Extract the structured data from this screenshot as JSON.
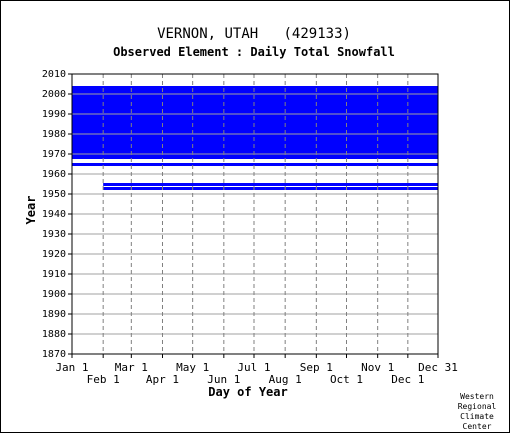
{
  "chart_data": {
    "type": "heatmap",
    "title": "VERNON, UTAH   (429133)",
    "subtitle": "Observed Element : Daily Total Snowfall",
    "xlabel": "Day of Year",
    "ylabel": "Year",
    "xlim": [
      1,
      365
    ],
    "ylim": [
      1870,
      2010
    ],
    "grid": true,
    "series_color": "#0000ff",
    "y_ticks": [
      2010,
      2000,
      1990,
      1980,
      1970,
      1960,
      1950,
      1940,
      1930,
      1920,
      1910,
      1900,
      1890,
      1880,
      1870
    ],
    "x_ticks_upper": [
      {
        "label": "Jan 1",
        "day": 1
      },
      {
        "label": "Mar 1",
        "day": 60
      },
      {
        "label": "May 1",
        "day": 121
      },
      {
        "label": "Jul 1",
        "day": 182
      },
      {
        "label": "Sep 1",
        "day": 244
      },
      {
        "label": "Nov 1",
        "day": 305
      },
      {
        "label": "Dec 31",
        "day": 365
      }
    ],
    "x_ticks_lower": [
      {
        "label": "Feb 1",
        "day": 32
      },
      {
        "label": "Apr 1",
        "day": 91
      },
      {
        "label": "Jun 1",
        "day": 152
      },
      {
        "label": "Aug 1",
        "day": 213
      },
      {
        "label": "Oct 1",
        "day": 274
      },
      {
        "label": "Dec 1",
        "day": 335
      }
    ],
    "data_coverage": {
      "full_block_years": [
        1964,
        2004
      ],
      "gap_years": [
        1965.5,
        1967.5
      ],
      "sparse_year_segments": [
        {
          "year": 1955,
          "start_day": 32,
          "end_day": 365
        },
        {
          "year": 1953,
          "start_day": 32,
          "end_day": 365
        }
      ],
      "early_years": [
        1870,
        1952
      ],
      "early_years_status": "no data"
    }
  },
  "credit": [
    "Western",
    "Regional",
    "Climate",
    "Center"
  ]
}
